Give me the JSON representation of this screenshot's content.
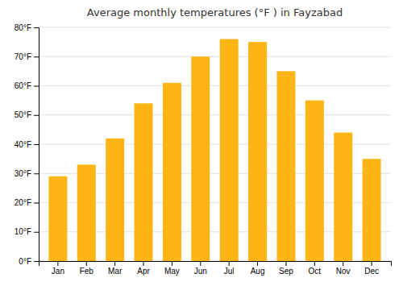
{
  "chart_data": {
    "type": "bar",
    "title": "Average monthly temperatures (°F ) in Fayzabad",
    "categories": [
      "Jan",
      "Feb",
      "Mar",
      "Apr",
      "May",
      "Jun",
      "Jul",
      "Aug",
      "Sep",
      "Oct",
      "Nov",
      "Dec"
    ],
    "values": [
      29,
      33,
      42,
      54,
      61,
      70,
      76,
      75,
      65,
      55,
      44,
      35
    ],
    "color": "#FDB515",
    "ylim": [
      0,
      80
    ],
    "yticks": [
      {
        "value": 0,
        "label": "0°F"
      },
      {
        "value": 10,
        "label": "10°F"
      },
      {
        "value": 20,
        "label": "20°F"
      },
      {
        "value": 30,
        "label": "30°F"
      },
      {
        "value": 40,
        "label": "40°F"
      },
      {
        "value": 50,
        "label": "50°F"
      },
      {
        "value": 60,
        "label": "60°F"
      },
      {
        "value": 70,
        "label": "70°F"
      },
      {
        "value": 80,
        "label": "80°F"
      }
    ],
    "grid": true
  }
}
